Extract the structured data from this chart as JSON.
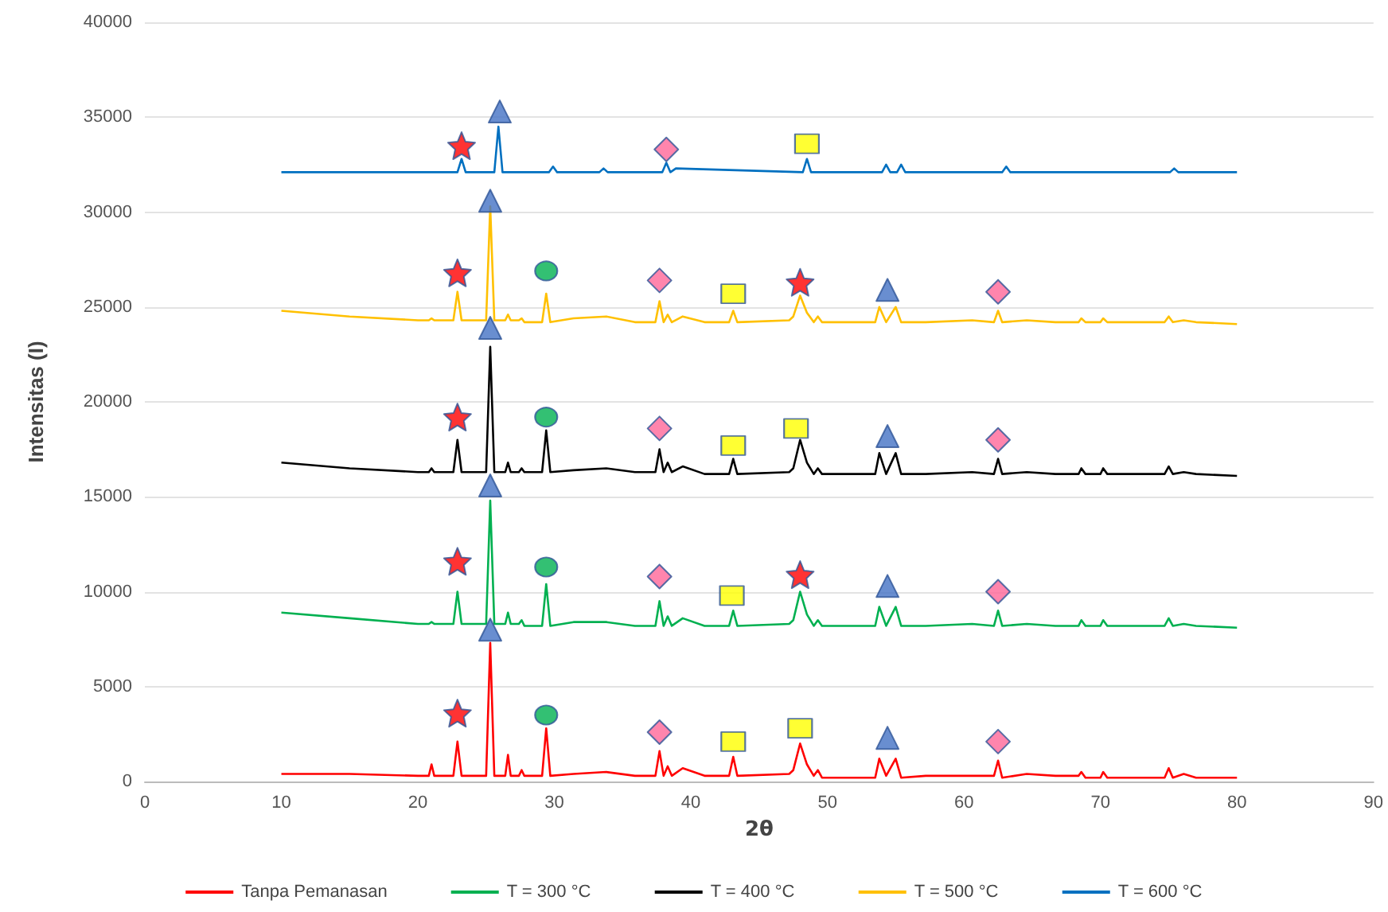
{
  "chart_data": {
    "type": "line",
    "xlabel": "2θ",
    "ylabel": "Intensitas (I)",
    "xlim": [
      0,
      90
    ],
    "xticks": [
      0,
      10,
      20,
      30,
      40,
      50,
      60,
      70,
      80,
      90
    ],
    "ylim": [
      0,
      40000
    ],
    "yticks": [
      0,
      5000,
      10000,
      15000,
      20000,
      25000,
      30000,
      35000,
      40000
    ],
    "grid": "y",
    "legend": "bottom",
    "marker": "none",
    "line_style": "solid",
    "x": [
      10,
      15,
      20,
      20.8,
      21.0,
      21.2,
      22.6,
      22.9,
      23.2,
      25.0,
      25.3,
      25.6,
      26.4,
      26.6,
      26.8,
      27.4,
      27.6,
      27.8,
      29.1,
      29.4,
      29.7,
      31.4,
      33.8,
      35.9,
      37.4,
      37.7,
      38.0,
      38.3,
      38.6,
      39.4,
      41,
      42.8,
      43.1,
      43.4,
      47.2,
      47.5,
      48.0,
      48.5,
      49.0,
      49.3,
      49.6,
      53.5,
      53.8,
      54.3,
      55.0,
      55.4,
      57.2,
      60.6,
      62.2,
      62.5,
      62.8,
      64.6,
      66.7,
      68.4,
      68.6,
      68.9,
      70.0,
      70.2,
      70.5,
      74.7,
      75.0,
      75.3,
      76.1,
      77,
      80
    ],
    "series": [
      {
        "name": "Tanpa Pemanasan",
        "color": "#ff0000",
        "values": [
          400,
          400,
          300,
          300,
          900,
          300,
          300,
          2100,
          300,
          300,
          7300,
          300,
          300,
          1400,
          300,
          300,
          600,
          300,
          300,
          2800,
          300,
          400,
          500,
          300,
          300,
          1600,
          300,
          800,
          300,
          700,
          300,
          300,
          1300,
          300,
          400,
          600,
          2000,
          900,
          300,
          600,
          200,
          200,
          1200,
          300,
          1200,
          200,
          300,
          300,
          300,
          1100,
          200,
          400,
          300,
          300,
          500,
          200,
          200,
          500,
          200,
          200,
          700,
          200,
          400,
          200,
          200
        ]
      },
      {
        "name": "T = 300 °C",
        "color": "#00b050",
        "values": [
          8900,
          8600,
          8300,
          8300,
          8400,
          8300,
          8300,
          10000,
          8300,
          8300,
          14800,
          8300,
          8300,
          8900,
          8300,
          8300,
          8500,
          8200,
          8200,
          10400,
          8200,
          8400,
          8400,
          8200,
          8200,
          9500,
          8200,
          8700,
          8200,
          8600,
          8200,
          8200,
          9000,
          8200,
          8300,
          8500,
          10000,
          8800,
          8200,
          8500,
          8200,
          8200,
          9200,
          8200,
          9200,
          8200,
          8200,
          8300,
          8200,
          9000,
          8200,
          8300,
          8200,
          8200,
          8500,
          8200,
          8200,
          8500,
          8200,
          8200,
          8600,
          8200,
          8300,
          8200,
          8100
        ]
      },
      {
        "name": "T = 400 °C",
        "color": "#000000",
        "values": [
          16800,
          16500,
          16300,
          16300,
          16500,
          16300,
          16300,
          18000,
          16300,
          16300,
          22900,
          16300,
          16300,
          16800,
          16300,
          16300,
          16500,
          16300,
          16300,
          18500,
          16300,
          16400,
          16500,
          16300,
          16300,
          17500,
          16300,
          16800,
          16300,
          16600,
          16200,
          16200,
          17000,
          16200,
          16300,
          16500,
          18000,
          16800,
          16200,
          16500,
          16200,
          16200,
          17300,
          16200,
          17300,
          16200,
          16200,
          16300,
          16200,
          17000,
          16200,
          16300,
          16200,
          16200,
          16500,
          16200,
          16200,
          16500,
          16200,
          16200,
          16600,
          16200,
          16300,
          16200,
          16100
        ]
      },
      {
        "name": "T = 500 °C",
        "color": "#ffc000",
        "values": [
          24800,
          24500,
          24300,
          24300,
          24400,
          24300,
          24300,
          25800,
          24300,
          24300,
          30300,
          24300,
          24300,
          24600,
          24300,
          24300,
          24400,
          24200,
          24200,
          25700,
          24200,
          24400,
          24500,
          24200,
          24200,
          25300,
          24200,
          24600,
          24200,
          24500,
          24200,
          24200,
          24800,
          24200,
          24300,
          24500,
          25600,
          24700,
          24200,
          24500,
          24200,
          24200,
          25000,
          24200,
          25000,
          24200,
          24200,
          24300,
          24200,
          24800,
          24200,
          24300,
          24200,
          24200,
          24400,
          24200,
          24200,
          24400,
          24200,
          24200,
          24500,
          24200,
          24300,
          24200,
          24100
        ]
      },
      {
        "name": "T = 600 °C",
        "color": "#0070c0",
        "x": [
          10,
          22.9,
          23.2,
          23.5,
          25.6,
          25.9,
          26.2,
          29.6,
          29.9,
          30.2,
          33.3,
          33.6,
          33.9,
          37.9,
          38.2,
          38.5,
          38.9,
          48.2,
          48.5,
          48.8,
          54.0,
          54.3,
          54.6,
          55.1,
          55.4,
          55.7,
          62.8,
          63.1,
          63.4,
          75.1,
          75.4,
          75.7,
          80
        ],
        "values": [
          32100,
          32100,
          32800,
          32100,
          32100,
          34500,
          32100,
          32100,
          32400,
          32100,
          32100,
          32300,
          32100,
          32100,
          32600,
          32100,
          32300,
          32100,
          32800,
          32100,
          32100,
          32500,
          32100,
          32100,
          32500,
          32100,
          32100,
          32400,
          32100,
          32100,
          32300,
          32100,
          32100
        ]
      },
      {
        "type": "scatter",
        "marker": "star",
        "color": "#ff0000",
        "x": [
          22.9,
          22.9,
          22.9,
          22.9,
          23.2,
          48.0,
          48.0
        ],
        "values": [
          3600,
          11600,
          19200,
          26800,
          33500,
          10900,
          26300
        ]
      },
      {
        "type": "scatter",
        "marker": "triangle",
        "color": "#4472c4",
        "x": [
          25.3,
          25.3,
          25.3,
          25.3,
          26.0,
          54.4,
          54.4,
          54.4,
          54.4
        ],
        "values": [
          8000,
          15600,
          23900,
          30600,
          35300,
          2300,
          10300,
          18200,
          25900
        ]
      },
      {
        "type": "scatter",
        "marker": "circle",
        "color": "#00b050",
        "x": [
          29.4,
          29.4,
          29.4,
          29.4
        ],
        "values": [
          3500,
          11300,
          19200,
          26900
        ]
      },
      {
        "type": "scatter",
        "marker": "diamond",
        "color": "#ff6699",
        "x": [
          37.7,
          37.7,
          37.7,
          37.7,
          38.2,
          62.5,
          62.5,
          62.5,
          62.5
        ],
        "values": [
          2600,
          10800,
          18600,
          26400,
          33300,
          2100,
          10000,
          18000,
          25800
        ]
      },
      {
        "type": "scatter",
        "marker": "square",
        "color": "#ffff00",
        "x": [
          43.1,
          43.0,
          43.1,
          43.1,
          48.5,
          48.0,
          47.7
        ],
        "values": [
          2100,
          9800,
          17700,
          25700,
          33600,
          2800,
          18600
        ]
      }
    ]
  }
}
